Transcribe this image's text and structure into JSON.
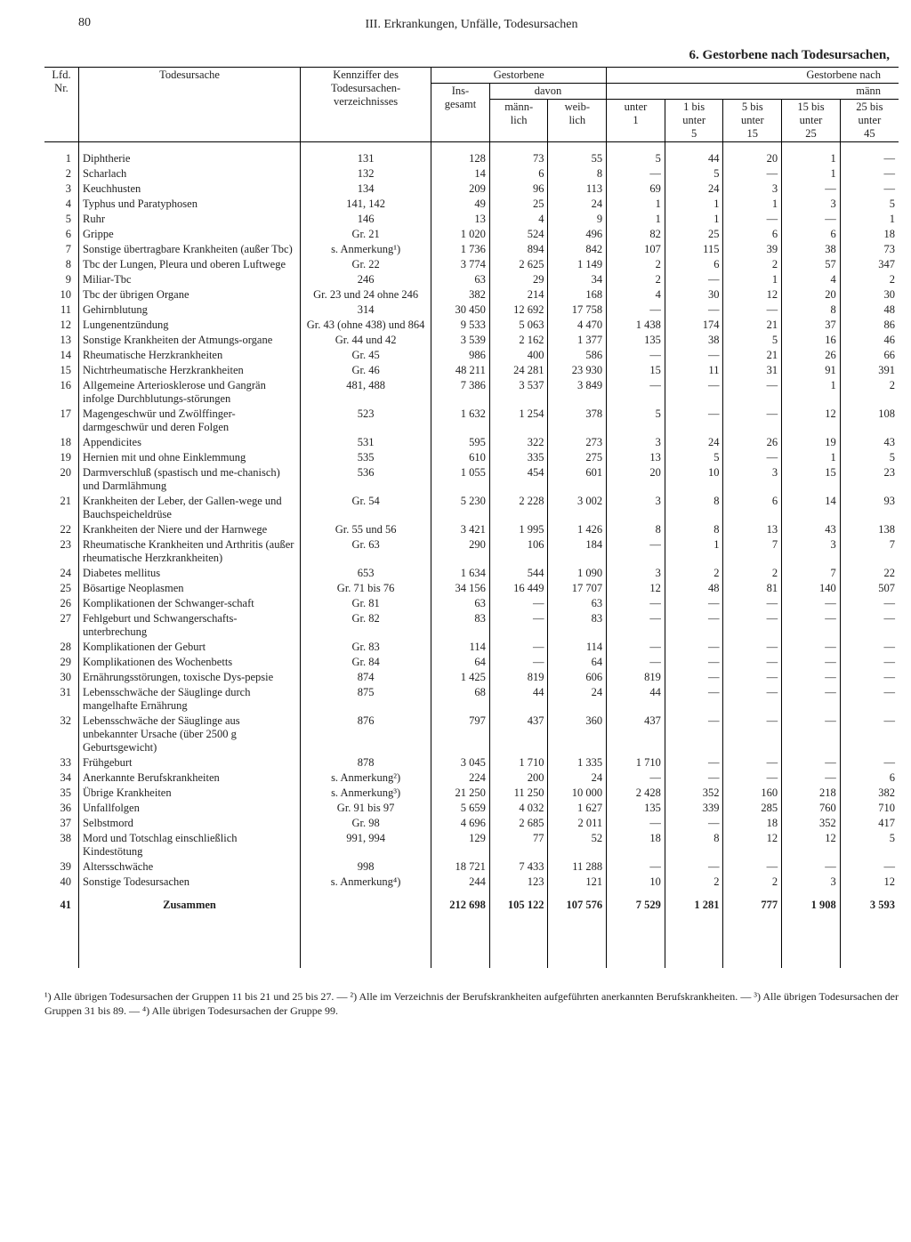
{
  "page_number": "80",
  "running_header": "III. Erkrankungen, Unfälle, Todesursachen",
  "subtitle": "6. Gestorbene nach Todesursachen,",
  "col_headers": {
    "lfd": "Lfd.\nNr.",
    "cause": "Todesursache",
    "code": "Kennziffer des\nTodesursachen-\nverzeichnisses",
    "deceased": "Gestorbene",
    "davon": "davon",
    "total": "Ins-\ngesamt",
    "male": "männ-\nlich",
    "female": "weib-\nlich",
    "by_age": "Gestorbene nach",
    "male2": "männ",
    "a1": "unter\n1",
    "a2": "1 bis\nunter\n5",
    "a3": "5 bis\nunter\n15",
    "a4": "15 bis\nunter\n25",
    "a5": "25 bis\nunter\n45"
  },
  "rows": [
    {
      "nr": "1",
      "cause": "Diphtherie",
      "code": "131",
      "t": "128",
      "m": "73",
      "w": "55",
      "a": [
        "5",
        "44",
        "20",
        "1",
        "—"
      ]
    },
    {
      "nr": "2",
      "cause": "Scharlach",
      "code": "132",
      "t": "14",
      "m": "6",
      "w": "8",
      "a": [
        "—",
        "5",
        "—",
        "1",
        "—"
      ]
    },
    {
      "nr": "3",
      "cause": "Keuchhusten",
      "code": "134",
      "t": "209",
      "m": "96",
      "w": "113",
      "a": [
        "69",
        "24",
        "3",
        "—",
        "—"
      ]
    },
    {
      "nr": "4",
      "cause": "Typhus und Paratyphosen",
      "code": "141, 142",
      "t": "49",
      "m": "25",
      "w": "24",
      "a": [
        "1",
        "1",
        "1",
        "3",
        "5"
      ]
    },
    {
      "nr": "5",
      "cause": "Ruhr",
      "code": "146",
      "t": "13",
      "m": "4",
      "w": "9",
      "a": [
        "1",
        "1",
        "—",
        "—",
        "1"
      ]
    },
    {
      "nr": "6",
      "cause": "Grippe",
      "code": "Gr. 21",
      "t": "1 020",
      "m": "524",
      "w": "496",
      "a": [
        "82",
        "25",
        "6",
        "6",
        "18"
      ]
    },
    {
      "nr": "7",
      "cause": "Sonstige übertragbare Krankheiten (außer Tbc)",
      "code": "s. Anmerkung¹)",
      "t": "1 736",
      "m": "894",
      "w": "842",
      "a": [
        "107",
        "115",
        "39",
        "38",
        "73"
      ]
    },
    {
      "nr": "8",
      "cause": "Tbc der Lungen, Pleura und oberen Luftwege",
      "code": "Gr. 22",
      "t": "3 774",
      "m": "2 625",
      "w": "1 149",
      "a": [
        "2",
        "6",
        "2",
        "57",
        "347"
      ]
    },
    {
      "nr": "9",
      "cause": "Miliar-Tbc",
      "code": "246",
      "t": "63",
      "m": "29",
      "w": "34",
      "a": [
        "2",
        "—",
        "1",
        "4",
        "2"
      ]
    },
    {
      "nr": "10",
      "cause": "Tbc der übrigen Organe",
      "code": "Gr. 23 und 24 ohne 246",
      "t": "382",
      "m": "214",
      "w": "168",
      "a": [
        "4",
        "30",
        "12",
        "20",
        "30"
      ]
    },
    {
      "nr": "11",
      "cause": "Gehirnblutung",
      "code": "314",
      "t": "30 450",
      "m": "12 692",
      "w": "17 758",
      "a": [
        "—",
        "—",
        "—",
        "8",
        "48"
      ]
    },
    {
      "nr": "12",
      "cause": "Lungenentzündung",
      "code": "Gr. 43 (ohne 438) und 864",
      "t": "9 533",
      "m": "5 063",
      "w": "4 470",
      "a": [
        "1 438",
        "174",
        "21",
        "37",
        "86"
      ]
    },
    {
      "nr": "13",
      "cause": "Sonstige Krankheiten der Atmungs-organe",
      "code": "Gr. 44 und 42",
      "t": "3 539",
      "m": "2 162",
      "w": "1 377",
      "a": [
        "135",
        "38",
        "5",
        "16",
        "46"
      ]
    },
    {
      "nr": "14",
      "cause": "Rheumatische Herzkrankheiten",
      "code": "Gr. 45",
      "t": "986",
      "m": "400",
      "w": "586",
      "a": [
        "—",
        "—",
        "21",
        "26",
        "66"
      ]
    },
    {
      "nr": "15",
      "cause": "Nichtrheumatische Herzkrankheiten",
      "code": "Gr. 46",
      "t": "48 211",
      "m": "24 281",
      "w": "23 930",
      "a": [
        "15",
        "11",
        "31",
        "91",
        "391"
      ]
    },
    {
      "nr": "16",
      "cause": "Allgemeine Arteriosklerose und Gangrän infolge Durchblutungs-störungen",
      "code": "481, 488",
      "t": "7 386",
      "m": "3 537",
      "w": "3 849",
      "a": [
        "—",
        "—",
        "—",
        "1",
        "2"
      ]
    },
    {
      "nr": "17",
      "cause": "Magengeschwür und Zwölffinger-darmgeschwür und deren Folgen",
      "code": "523",
      "t": "1 632",
      "m": "1 254",
      "w": "378",
      "a": [
        "5",
        "—",
        "—",
        "12",
        "108"
      ]
    },
    {
      "nr": "18",
      "cause": "Appendicites",
      "code": "531",
      "t": "595",
      "m": "322",
      "w": "273",
      "a": [
        "3",
        "24",
        "26",
        "19",
        "43"
      ]
    },
    {
      "nr": "19",
      "cause": "Hernien mit und ohne Einklemmung",
      "code": "535",
      "t": "610",
      "m": "335",
      "w": "275",
      "a": [
        "13",
        "5",
        "—",
        "1",
        "5"
      ]
    },
    {
      "nr": "20",
      "cause": "Darmverschluß (spastisch und me-chanisch) und Darmlähmung",
      "code": "536",
      "t": "1 055",
      "m": "454",
      "w": "601",
      "a": [
        "20",
        "10",
        "3",
        "15",
        "23"
      ]
    },
    {
      "nr": "21",
      "cause": "Krankheiten der Leber, der Gallen-wege und Bauchspeicheldrüse",
      "code": "Gr. 54",
      "t": "5 230",
      "m": "2 228",
      "w": "3 002",
      "a": [
        "3",
        "8",
        "6",
        "14",
        "93"
      ]
    },
    {
      "nr": "22",
      "cause": "Krankheiten der Niere und der Harnwege",
      "code": "Gr. 55 und 56",
      "t": "3 421",
      "m": "1 995",
      "w": "1 426",
      "a": [
        "8",
        "8",
        "13",
        "43",
        "138"
      ]
    },
    {
      "nr": "23",
      "cause": "Rheumatische Krankheiten und Arthritis (außer rheumatische Herzkrankheiten)",
      "code": "Gr. 63",
      "t": "290",
      "m": "106",
      "w": "184",
      "a": [
        "—",
        "1",
        "7",
        "3",
        "7"
      ]
    },
    {
      "nr": "24",
      "cause": "Diabetes mellitus",
      "code": "653",
      "t": "1 634",
      "m": "544",
      "w": "1 090",
      "a": [
        "3",
        "2",
        "2",
        "7",
        "22"
      ]
    },
    {
      "nr": "25",
      "cause": "Bösartige Neoplasmen",
      "code": "Gr. 71 bis 76",
      "t": "34 156",
      "m": "16 449",
      "w": "17 707",
      "a": [
        "12",
        "48",
        "81",
        "140",
        "507"
      ]
    },
    {
      "nr": "26",
      "cause": "Komplikationen der Schwanger-schaft",
      "code": "Gr. 81",
      "t": "63",
      "m": "—",
      "w": "63",
      "a": [
        "—",
        "—",
        "—",
        "—",
        "—"
      ]
    },
    {
      "nr": "27",
      "cause": "Fehlgeburt und Schwangerschafts-unterbrechung",
      "code": "Gr. 82",
      "t": "83",
      "m": "—",
      "w": "83",
      "a": [
        "—",
        "—",
        "—",
        "—",
        "—"
      ]
    },
    {
      "nr": "28",
      "cause": "Komplikationen der Geburt",
      "code": "Gr. 83",
      "t": "114",
      "m": "—",
      "w": "114",
      "a": [
        "—",
        "—",
        "—",
        "—",
        "—"
      ]
    },
    {
      "nr": "29",
      "cause": "Komplikationen des Wochenbetts",
      "code": "Gr. 84",
      "t": "64",
      "m": "—",
      "w": "64",
      "a": [
        "—",
        "—",
        "—",
        "—",
        "—"
      ]
    },
    {
      "nr": "30",
      "cause": "Ernährungsstörungen, toxische Dys-pepsie",
      "code": "874",
      "t": "1 425",
      "m": "819",
      "w": "606",
      "a": [
        "819",
        "—",
        "—",
        "—",
        "—"
      ]
    },
    {
      "nr": "31",
      "cause": "Lebensschwäche der Säuglinge durch mangelhafte Ernährung",
      "code": "875",
      "t": "68",
      "m": "44",
      "w": "24",
      "a": [
        "44",
        "—",
        "—",
        "—",
        "—"
      ]
    },
    {
      "nr": "32",
      "cause": "Lebensschwäche der Säuglinge aus unbekannter Ursache (über 2500 g Geburtsgewicht)",
      "code": "876",
      "t": "797",
      "m": "437",
      "w": "360",
      "a": [
        "437",
        "—",
        "—",
        "—",
        "—"
      ]
    },
    {
      "nr": "33",
      "cause": "Frühgeburt",
      "code": "878",
      "t": "3 045",
      "m": "1 710",
      "w": "1 335",
      "a": [
        "1 710",
        "—",
        "—",
        "—",
        "—"
      ]
    },
    {
      "nr": "34",
      "cause": "Anerkannte Berufskrankheiten",
      "code": "s. Anmerkung²)",
      "t": "224",
      "m": "200",
      "w": "24",
      "a": [
        "—",
        "—",
        "—",
        "—",
        "6"
      ]
    },
    {
      "nr": "35",
      "cause": "Übrige Krankheiten",
      "code": "s. Anmerkung³)",
      "t": "21 250",
      "m": "11 250",
      "w": "10 000",
      "a": [
        "2 428",
        "352",
        "160",
        "218",
        "382"
      ]
    },
    {
      "nr": "36",
      "cause": "Unfallfolgen",
      "code": "Gr. 91 bis 97",
      "t": "5 659",
      "m": "4 032",
      "w": "1 627",
      "a": [
        "135",
        "339",
        "285",
        "760",
        "710"
      ]
    },
    {
      "nr": "37",
      "cause": "Selbstmord",
      "code": "Gr. 98",
      "t": "4 696",
      "m": "2 685",
      "w": "2 011",
      "a": [
        "—",
        "—",
        "18",
        "352",
        "417"
      ]
    },
    {
      "nr": "38",
      "cause": "Mord und Totschlag einschließlich Kindestötung",
      "code": "991, 994",
      "t": "129",
      "m": "77",
      "w": "52",
      "a": [
        "18",
        "8",
        "12",
        "12",
        "5"
      ]
    },
    {
      "nr": "39",
      "cause": "Altersschwäche",
      "code": "998",
      "t": "18 721",
      "m": "7 433",
      "w": "11 288",
      "a": [
        "—",
        "—",
        "—",
        "—",
        "—"
      ]
    },
    {
      "nr": "40",
      "cause": "Sonstige Todesursachen",
      "code": "s. Anmerkung⁴)",
      "t": "244",
      "m": "123",
      "w": "121",
      "a": [
        "10",
        "2",
        "2",
        "3",
        "12"
      ]
    }
  ],
  "sum": {
    "nr": "41",
    "label": "Zusammen",
    "t": "212 698",
    "m": "105 122",
    "w": "107 576",
    "a": [
      "7 529",
      "1 281",
      "777",
      "1 908",
      "3 593"
    ]
  },
  "footnote": "¹) Alle übrigen Todesursachen der Gruppen 11 bis 21 und 25 bis 27. — ²) Alle im Verzeichnis der Berufskrankheiten aufgeführten anerkannten Berufskrankheiten. — ³) Alle übrigen Todesursachen der Gruppen 31 bis 89. — ⁴) Alle übrigen Todesursachen der Gruppe 99."
}
